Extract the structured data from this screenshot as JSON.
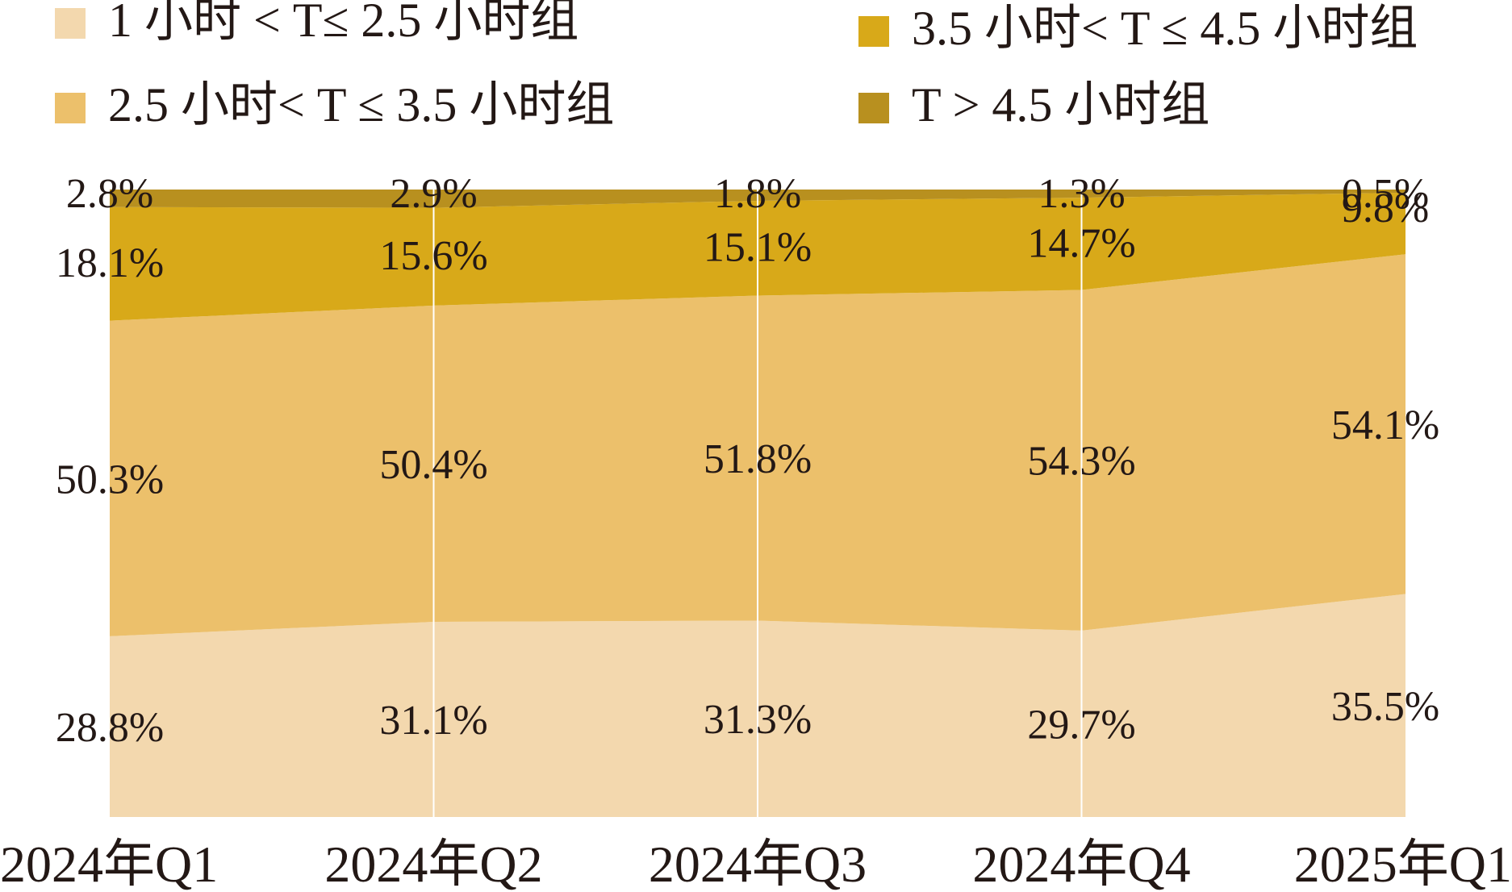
{
  "chart_data": {
    "type": "area",
    "stacked": true,
    "normalized_percent": true,
    "categories": [
      "2024年Q1",
      "2024年Q2",
      "2024年Q3",
      "2024年Q4",
      "2025年Q1"
    ],
    "series": [
      {
        "name": "1 小时 < T≤ 2.5 小时组",
        "color": "#f3d8ae",
        "values": [
          28.8,
          31.1,
          31.3,
          29.7,
          35.5
        ],
        "labels": [
          "28.8%",
          "31.1%",
          "31.3%",
          "29.7%",
          "35.5%"
        ]
      },
      {
        "name": "2.5 小时< T ≤ 3.5 小时组",
        "color": "#ecc06b",
        "values": [
          50.3,
          50.4,
          51.8,
          54.3,
          54.1
        ],
        "labels": [
          "50.3%",
          "50.4%",
          "51.8%",
          "54.3%",
          "54.1%"
        ]
      },
      {
        "name": "3.5 小时< T ≤ 4.5 小时组",
        "color": "#d8a919",
        "values": [
          18.1,
          15.6,
          15.1,
          14.7,
          9.8
        ],
        "labels": [
          "18.1%",
          "15.6%",
          "15.1%",
          "14.7%",
          "9.8%"
        ]
      },
      {
        "name": "T > 4.5 小时组",
        "color": "#b8901f",
        "values": [
          2.8,
          2.9,
          1.8,
          1.3,
          0.5
        ],
        "labels": [
          "2.8%",
          "2.9%",
          "1.8%",
          "1.3%",
          "0.5%"
        ]
      }
    ],
    "ylim": [
      0,
      100
    ],
    "title": "",
    "xlabel": "",
    "ylabel": "",
    "grid": "vertical",
    "legend_position": "top"
  }
}
